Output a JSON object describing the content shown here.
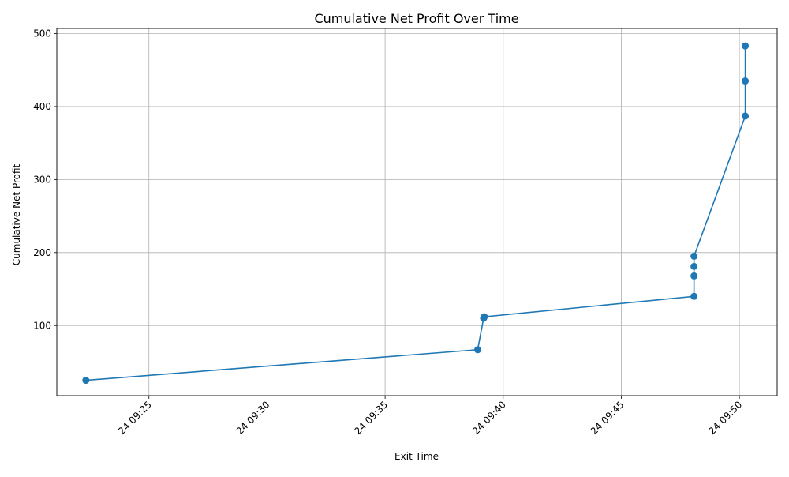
{
  "chart_data": {
    "type": "line",
    "title": "Cumulative Net Profit Over Time",
    "xlabel": "Exit Time",
    "ylabel": "Cumulative Net Profit",
    "x_axis_type": "datetime",
    "x_ticks": [
      "24 09:25",
      "24 09:30",
      "24 09:35",
      "24 09:40",
      "24 09:45",
      "24 09:50"
    ],
    "x_tick_minutes": [
      25,
      30,
      35,
      40,
      45,
      50
    ],
    "x_range_minutes": [
      21.1,
      51.6
    ],
    "y_ticks": [
      100,
      200,
      300,
      400,
      500
    ],
    "ylim": [
      4,
      507
    ],
    "grid": true,
    "marker": "circle",
    "series": [
      {
        "color": "#1f77b4",
        "points": [
          {
            "x": "09:22:20",
            "x_min": 22.33,
            "y": 25
          },
          {
            "x": "09:38:55",
            "x_min": 38.92,
            "y": 67
          },
          {
            "x": "09:39:10",
            "x_min": 39.17,
            "y": 110
          },
          {
            "x": "09:39:12",
            "x_min": 39.2,
            "y": 112
          },
          {
            "x": "09:48:05",
            "x_min": 48.08,
            "y": 140
          },
          {
            "x": "09:48:05",
            "x_min": 48.08,
            "y": 168
          },
          {
            "x": "09:48:05",
            "x_min": 48.08,
            "y": 181
          },
          {
            "x": "09:48:05",
            "x_min": 48.08,
            "y": 195
          },
          {
            "x": "09:50:15",
            "x_min": 50.25,
            "y": 387
          },
          {
            "x": "09:50:15",
            "x_min": 50.25,
            "y": 435
          },
          {
            "x": "09:50:15",
            "x_min": 50.25,
            "y": 483
          }
        ]
      }
    ]
  }
}
